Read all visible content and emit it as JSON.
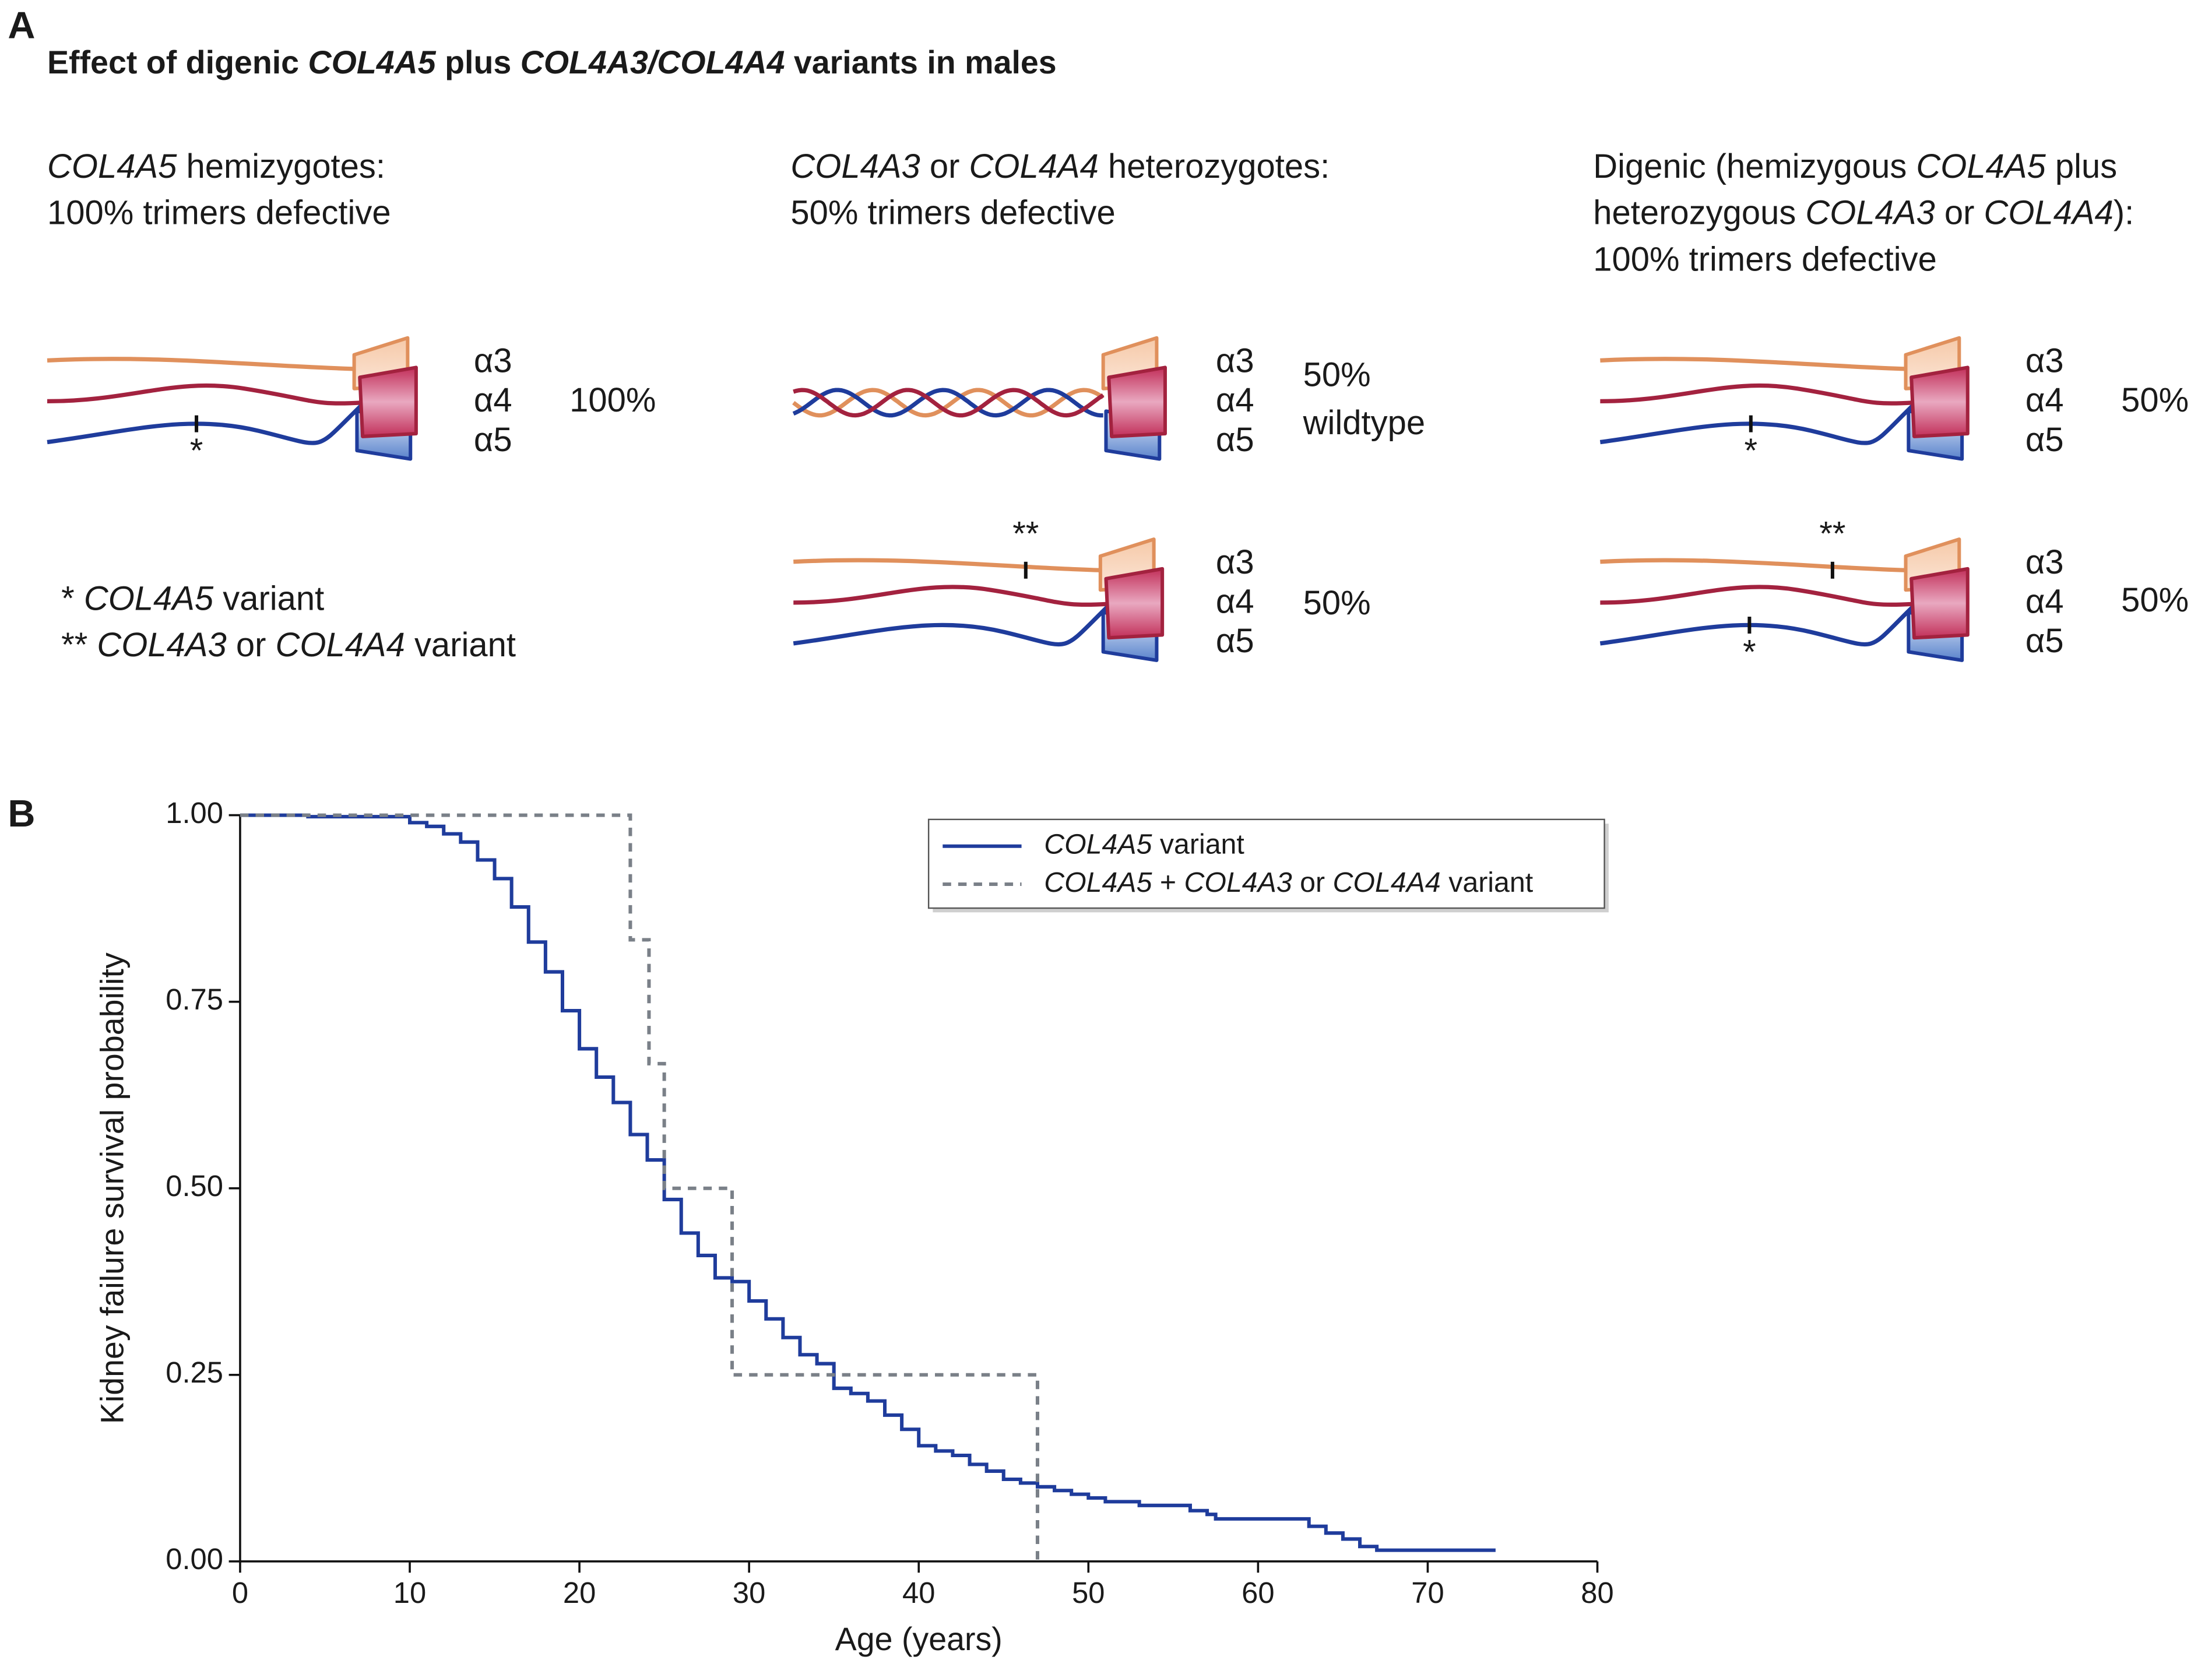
{
  "panel_a": {
    "label": "A",
    "title": "Effect of digenic COL4A5 plus COL4A3/COL4A4 variants in males",
    "columns": [
      {
        "heading": [
          "COL4A5 hemizygotes:",
          "100% trimers defective"
        ],
        "trimers": [
          {
            "chains": [
              "α3",
              "α4",
              "α5"
            ],
            "share": [
              "100%"
            ],
            "marks": [
              "*"
            ]
          }
        ]
      },
      {
        "heading": [
          "COL4A3 or COL4A4 heterozygotes:",
          "50% trimers defective"
        ],
        "trimers": [
          {
            "chains": [
              "α3",
              "α4",
              "α5"
            ],
            "share": [
              "50%",
              "wildtype"
            ]
          },
          {
            "chains": [
              "α3",
              "α4",
              "α5"
            ],
            "share": [
              "50%"
            ],
            "marks": [
              "**"
            ]
          }
        ]
      },
      {
        "heading": [
          "Digenic (hemizygous COL4A5 plus",
          "heterozygous COL4A3 or COL4A4):",
          "100% trimers defective"
        ],
        "trimers": [
          {
            "chains": [
              "α3",
              "α4",
              "α5"
            ],
            "share": [
              "50%"
            ],
            "marks": [
              "*"
            ]
          },
          {
            "chains": [
              "α3",
              "α4",
              "α5"
            ],
            "share": [
              "50%"
            ],
            "marks": [
              "**",
              "*"
            ]
          }
        ]
      }
    ],
    "footnotes": [
      "* COL4A5 variant",
      "** COL4A3 or COL4A4 variant"
    ]
  },
  "chart_data": {
    "type": "step",
    "panel_label": "B",
    "x_label": "Age (years)",
    "y_label": "Kidney failure survival probability",
    "xlim": [
      0,
      80
    ],
    "xticks": [
      0,
      10,
      20,
      30,
      40,
      50,
      60,
      70,
      80
    ],
    "ylim": [
      0,
      1
    ],
    "yticks": [
      {
        "value": 0,
        "label": "0.00"
      },
      {
        "value": 0.25,
        "label": "0.25"
      },
      {
        "value": 0.5,
        "label": "0.50"
      },
      {
        "value": 0.75,
        "label": "0.75"
      },
      {
        "value": 1,
        "label": "1.00"
      }
    ],
    "legend": "upper right",
    "series": [
      {
        "name": "COL4A5 variant",
        "color": "#1f3c9c",
        "line_style": "solid",
        "x": [
          0,
          4,
          10,
          11,
          12,
          13,
          14,
          15,
          16,
          17,
          18,
          19,
          20,
          21,
          22,
          23,
          24,
          25,
          26,
          27,
          28,
          29,
          30,
          31,
          32,
          33,
          34,
          35,
          36,
          37,
          38,
          39,
          40,
          41,
          42,
          43,
          44,
          45,
          46,
          47,
          48,
          49,
          50,
          51,
          53,
          56,
          57,
          57.5,
          63,
          64,
          65,
          66,
          67,
          74
        ],
        "values": [
          1,
          0.998,
          0.99,
          0.985,
          0.975,
          0.964,
          0.94,
          0.915,
          0.877,
          0.83,
          0.79,
          0.738,
          0.687,
          0.649,
          0.615,
          0.572,
          0.538,
          0.485,
          0.44,
          0.41,
          0.38,
          0.375,
          0.349,
          0.325,
          0.3,
          0.277,
          0.265,
          0.232,
          0.225,
          0.215,
          0.196,
          0.177,
          0.155,
          0.148,
          0.142,
          0.13,
          0.121,
          0.11,
          0.105,
          0.1,
          0.095,
          0.09,
          0.085,
          0.08,
          0.075,
          0.068,
          0.063,
          0.057,
          0.047,
          0.038,
          0.03,
          0.02,
          0.015,
          0.015
        ]
      },
      {
        "name": "COL4A5 + COL4A3 or COL4A4 variant",
        "color": "#7a8088",
        "line_style": "dashed",
        "x": [
          0,
          23,
          24.1,
          25,
          29,
          47
        ],
        "values": [
          1,
          0.833,
          0.667,
          0.5,
          0.25,
          0
        ]
      }
    ]
  }
}
